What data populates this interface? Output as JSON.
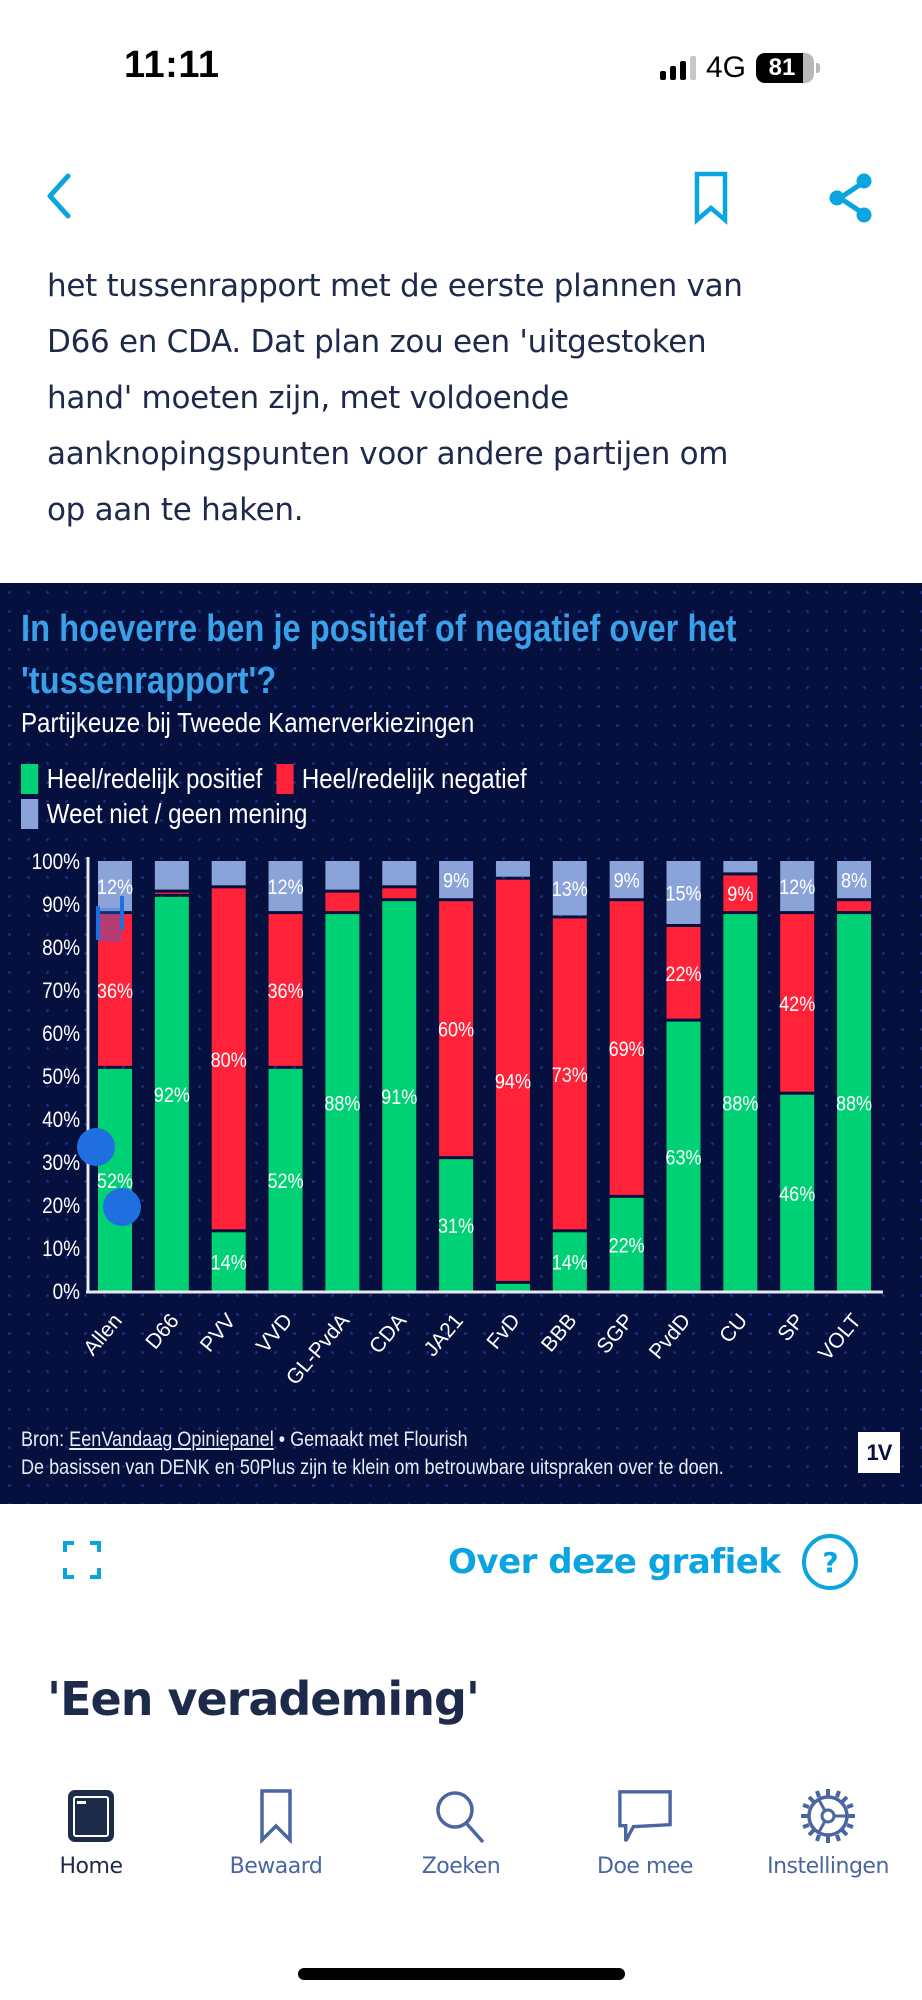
{
  "status_bar": {
    "time": "11:11",
    "network": "4G",
    "battery_percent": "81",
    "battery_level": 0.81,
    "signal_bars_active": 3,
    "signal_bars_total": 4
  },
  "top_nav": {
    "back_icon": "chevron-left-icon",
    "bookmark_icon": "bookmark-icon",
    "share_icon": "share-icon"
  },
  "article": {
    "paragraph_lines": [
      "het tussenrapport met de eerste plannen van",
      "D66 en CDA. Dat plan zou een 'uitgestoken",
      "hand' moeten zijn, met voldoende",
      "aanknopingspunten voor andere partijen om",
      "op aan te haken."
    ],
    "section_heading": "'Een verademing'"
  },
  "chart_header": {
    "title_line1": "In hoeverre ben je positief of negatief over het",
    "title_line2": "'tussenrapport'?",
    "subtitle": "Partijkeuze bij Tweede Kamerverkiezingen"
  },
  "chart_footer": {
    "source_prefix": "Bron: ",
    "source_link": "EenVandaag Opiniepanel",
    "source_suffix": " • Gemaakt met Flourish",
    "note": "De basissen van DENK en 50Plus zijn te klein om betrouwbare uitspraken over te doen.",
    "logo": "1V"
  },
  "colors": {
    "positive": "#00d174",
    "negative": "#ff2238",
    "dont_know": "#8aa3d8",
    "title": "#3aa0e8",
    "background": "#06103f",
    "accent": "#0aa4e0"
  },
  "below_chart": {
    "expand_icon": "expand-icon",
    "about_label": "Over deze grafiek",
    "help_glyph": "?"
  },
  "tab_bar": {
    "items": [
      {
        "label": "Home",
        "icon": "home-icon",
        "active": true
      },
      {
        "label": "Bewaard",
        "icon": "bookmark-icon",
        "active": false
      },
      {
        "label": "Zoeken",
        "icon": "search-icon",
        "active": false
      },
      {
        "label": "Doe mee",
        "icon": "chat-bubble-icon",
        "active": false
      },
      {
        "label": "Instellingen",
        "icon": "gear-icon",
        "active": false
      }
    ]
  },
  "chart_data": {
    "type": "bar",
    "stacked": true,
    "title": "In hoeverre ben je positief of negatief over het 'tussenrapport'?",
    "subtitle": "Partijkeuze bij Tweede Kamerverkiezingen",
    "xlabel": "",
    "ylabel": "",
    "ylim": [
      0,
      100
    ],
    "y_ticks": [
      "0%",
      "10%",
      "20%",
      "30%",
      "40%",
      "50%",
      "60%",
      "70%",
      "80%",
      "90%",
      "100%"
    ],
    "legend_position": "top-left",
    "label_threshold": 8,
    "categories": [
      "Allen",
      "D66",
      "PVV",
      "VVD",
      "GL-PvdA",
      "CDA",
      "JA21",
      "FvD",
      "BBB",
      "SGP",
      "PvdD",
      "CU",
      "SP",
      "VOLT"
    ],
    "series": [
      {
        "name": "Heel/redelijk positief",
        "color": "#00d174",
        "values": [
          52,
          92,
          14,
          52,
          88,
          91,
          31,
          2,
          14,
          22,
          63,
          88,
          46,
          88
        ]
      },
      {
        "name": "Heel/redelijk negatief",
        "color": "#ff2238",
        "values": [
          36,
          1,
          80,
          36,
          5,
          3,
          60,
          94,
          73,
          69,
          22,
          9,
          42,
          3
        ]
      },
      {
        "name": "Weet niet / geen mening",
        "color": "#8aa3d8",
        "values": [
          12,
          6,
          6,
          12,
          6,
          5,
          9,
          4,
          13,
          9,
          15,
          3,
          12,
          8
        ]
      }
    ]
  }
}
